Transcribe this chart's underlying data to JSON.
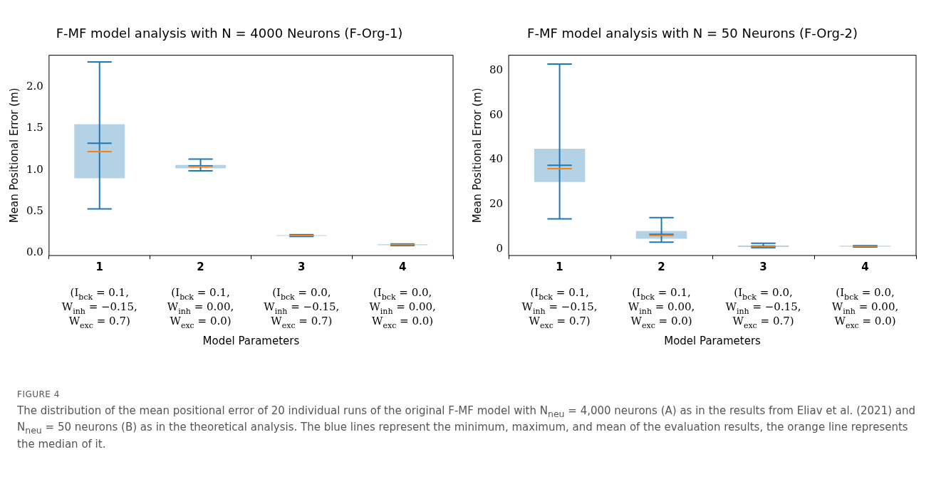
{
  "chart_data": [
    {
      "type": "box",
      "title": "F-MF model analysis with N = 4000 Neurons (F-Org-1)",
      "xlabel": "Model Parameters",
      "ylabel": "Mean Positional Error (m)",
      "categories": [
        "1",
        "2",
        "3",
        "4"
      ],
      "series": [
        {
          "color": "#1f77b4",
          "boxes": [
            {
              "low": 0.53,
              "q1": 0.9,
              "median": 1.22,
              "q3": 1.55,
              "high": 2.3,
              "mean": 1.32
            },
            {
              "low": 0.99,
              "q1": 1.02,
              "median": 1.04,
              "q3": 1.06,
              "high": 1.13,
              "mean": 1.05
            },
            {
              "low": 0.2,
              "q1": 0.205,
              "median": 0.21,
              "q3": 0.215,
              "high": 0.22,
              "mean": 0.21
            },
            {
              "low": 0.09,
              "q1": 0.095,
              "median": 0.1,
              "q3": 0.105,
              "high": 0.11,
              "mean": 0.1
            }
          ]
        }
      ],
      "ylim": [
        -0.03,
        2.38
      ],
      "yticks": [
        {
          "value": 0,
          "label": "0.0"
        },
        {
          "value": 0.5,
          "label": "0.5"
        },
        {
          "value": 1,
          "label": "1.0"
        },
        {
          "value": 1.5,
          "label": "1.5"
        },
        {
          "value": 2,
          "label": "2.0"
        }
      ],
      "grid": false,
      "legend": false,
      "annotations": [
        "(I$_{bck}$ = 0.1,\nW$_{inh}$ = −0.15,\nW$_{exc}$ = 0.7)",
        "(I$_{bck}$ = 0.1,\nW$_{inh}$ = 0.00,\nW$_{exc}$ = 0.0)",
        "(I$_{bck}$ = 0.0,\nW$_{inh}$ = −0.15,\nW$_{exc}$ = 0.7)",
        "(I$_{bck}$ = 0.0,\nW$_{inh}$ = 0.00,\nW$_{exc}$ = 0.0)"
      ]
    },
    {
      "type": "box",
      "title": "F-MF model analysis with N = 50 Neurons (F-Org-2)",
      "xlabel": "Model Parameters",
      "ylabel": "Mean Positional Error (m)",
      "categories": [
        "1",
        "2",
        "3",
        "4"
      ],
      "series": [
        {
          "color": "#1f77b4",
          "boxes": [
            {
              "low": 13.5,
              "q1": 30,
              "median": 36,
              "q3": 45,
              "high": 83,
              "mean": 37.5
            },
            {
              "low": 3,
              "q1": 4.5,
              "median": 6,
              "q3": 8,
              "high": 14,
              "mean": 6.5
            },
            {
              "low": 0.5,
              "q1": 0.8,
              "median": 1,
              "q3": 1.5,
              "high": 2.5,
              "mean": 1.2
            },
            {
              "low": 0.8,
              "q1": 1,
              "median": 1.2,
              "q3": 1.4,
              "high": 1.5,
              "mean": 1.2
            }
          ]
        }
      ],
      "ylim": [
        -3,
        87
      ],
      "yticks": [
        0,
        20,
        40,
        60,
        80
      ],
      "grid": false,
      "legend": false,
      "annotations": [
        "(I$_{bck}$ = 0.1,\nW$_{inh}$ = −0.15,\nW$_{exc}$ = 0.7)",
        "(I$_{bck}$ = 0.1,\nW$_{inh}$ = 0.00,\nW$_{exc}$ = 0.0)",
        "(I$_{bck}$ = 0.0,\nW$_{inh}$ = −0.15,\nW$_{exc}$ = 0.7)",
        "(I$_{bck}$ = 0.0,\nW$_{inh}$ = 0.00,\nW$_{exc}$ = 0.0)",
        "FIGURE 4",
        "The distribution of the mean positional error of 20 individual runs of the original F-MF model with N$_{neu}$ = 4,000 neurons (A) as in the results from Eliav et al. (2021) and N$_{neu}$ = 50 neurons (B) as in the theoretical analysis. The blue lines represent the minimum, maximum, and mean of the evaluation results, the orange line represents the median of it."
      ]
    }
  ]
}
